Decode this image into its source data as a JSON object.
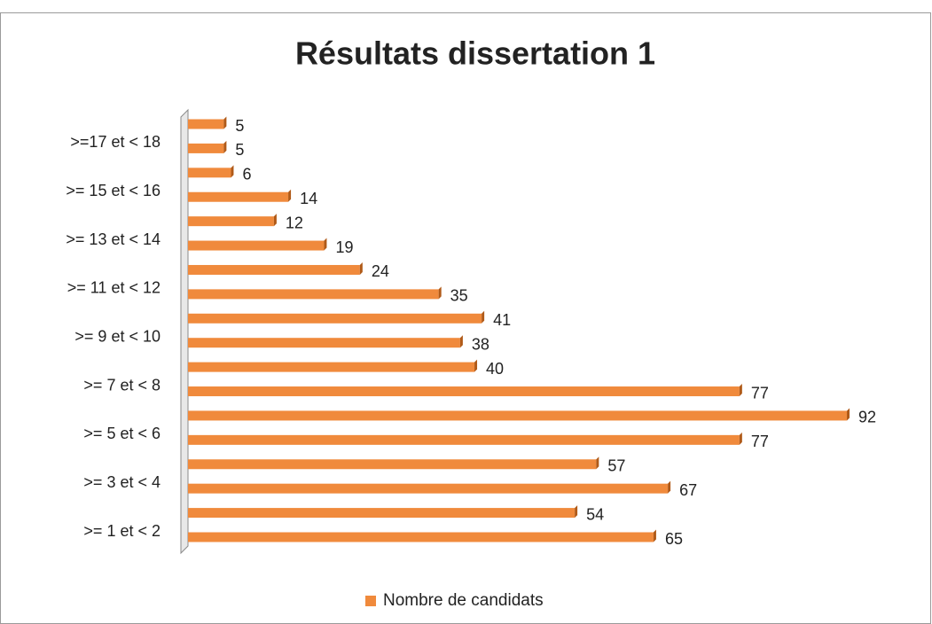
{
  "chart_data": {
    "type": "bar",
    "orientation": "horizontal",
    "title": "Résultats dissertation 1",
    "categories": [
      ">= 1 et < 2",
      null,
      ">= 3 et < 4",
      null,
      ">= 5 et < 6",
      null,
      ">= 7 et < 8",
      null,
      ">= 9 et < 10",
      null,
      ">= 11 et < 12",
      null,
      ">= 13 et < 14",
      null,
      ">= 15 et < 16",
      null,
      ">=17 et < 18",
      null
    ],
    "series": [
      {
        "name": "Nombre de candidats",
        "color": "#f08a3c",
        "values": [
          65,
          54,
          67,
          57,
          77,
          92,
          77,
          40,
          38,
          41,
          35,
          24,
          19,
          12,
          14,
          6,
          5,
          5
        ]
      }
    ],
    "data_labels": true,
    "legend": "bottom"
  }
}
